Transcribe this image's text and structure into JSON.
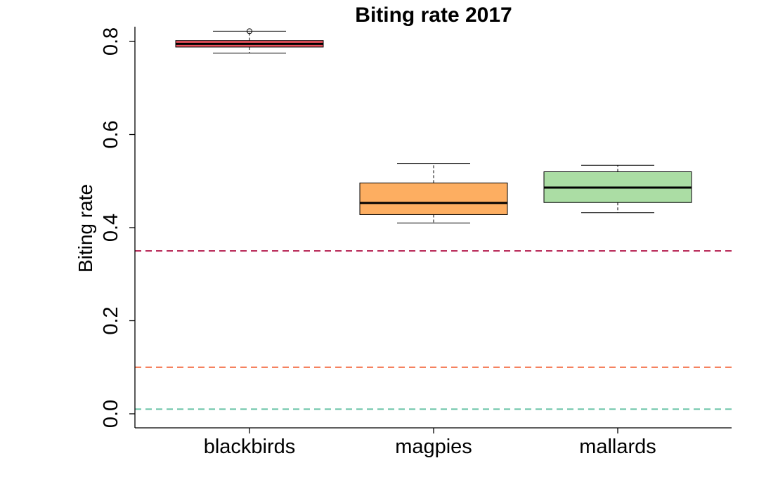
{
  "chart_data": {
    "type": "box",
    "title": "Biting rate 2017",
    "xlabel": "",
    "ylabel": "Biting rate",
    "ylim": [
      -0.04,
      0.83
    ],
    "yticks": [
      0.0,
      0.2,
      0.4,
      0.6,
      0.8
    ],
    "ytick_labels": [
      "0.0",
      "0.2",
      "0.4",
      "0.6",
      "0.8"
    ],
    "grid": false,
    "categories": [
      "blackbirds",
      "magpies",
      "mallards"
    ],
    "boxes": [
      {
        "category": "blackbirds",
        "whisker_low": 0.775,
        "q1": 0.788,
        "median": 0.795,
        "q3": 0.802,
        "whisker_high": 0.822,
        "outliers": [
          0.822
        ],
        "fill": "#e8505b"
      },
      {
        "category": "magpies",
        "whisker_low": 0.41,
        "q1": 0.428,
        "median": 0.453,
        "q3": 0.496,
        "whisker_high": 0.538,
        "outliers": [],
        "fill": "#fdae61"
      },
      {
        "category": "mallards",
        "whisker_low": 0.432,
        "q1": 0.454,
        "median": 0.486,
        "q3": 0.52,
        "whisker_high": 0.534,
        "outliers": [],
        "fill": "#abdda4"
      }
    ],
    "reference_lines": [
      {
        "y": 0.35,
        "color": "#b2184a",
        "style": "dashed"
      },
      {
        "y": 0.1,
        "color": "#f46d43",
        "style": "dashed"
      },
      {
        "y": 0.01,
        "color": "#66c2a5",
        "style": "dashed"
      }
    ]
  }
}
